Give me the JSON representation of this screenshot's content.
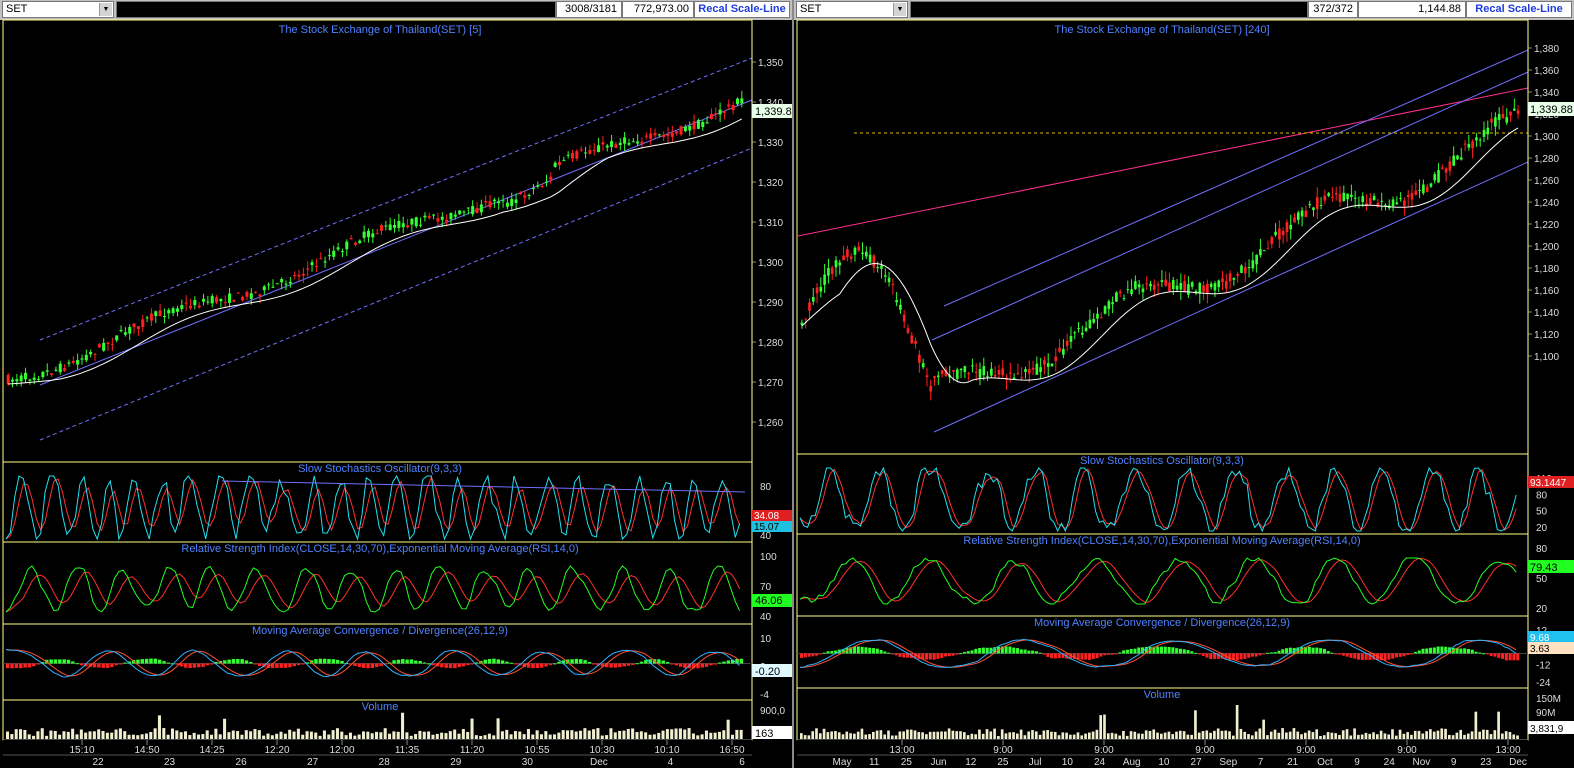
{
  "left": {
    "symbol": "SET",
    "record_count": "3008/3181",
    "volume_value": "772,973.00",
    "recal_label": "Recal Scale-Line",
    "main_title": "The Stock Exchange of Thailand(SET) [5]",
    "price_ticks": [
      "1,350",
      "1,340",
      "1,330",
      "1,320",
      "1,310",
      "1,300",
      "1,290",
      "1,280",
      "1,270",
      "1,260"
    ],
    "last_price": "1,339.8",
    "stoch_title": "Slow Stochastics Oscillator(9,3,3)",
    "stoch_ticks": [
      "80",
      "40"
    ],
    "stoch_values": [
      "34.08",
      "15.07"
    ],
    "rsi_title": "Relative Strength Index(CLOSE,14,30,70),Exponential Moving Average(RSI,14,0)",
    "rsi_ticks": [
      "100",
      "70",
      "40"
    ],
    "rsi_value": "46.06",
    "macd_title": "Moving Average Convergence / Divergence(26,12,9)",
    "macd_ticks": [
      "10",
      "2",
      "-4"
    ],
    "macd_value": "-0.20",
    "volume_title": "Volume",
    "volume_ticks": [
      "900,0"
    ],
    "volume_value_label": "163",
    "time_labels": [
      "15:10",
      "14:50",
      "14:25",
      "12:20",
      "12:00",
      "11:35",
      "11:20",
      "10:55",
      "10:30",
      "10:10",
      "16:50"
    ],
    "date_labels": [
      "22",
      "23",
      "26",
      "27",
      "28",
      "29",
      "30",
      "Dec",
      "4",
      "6"
    ]
  },
  "right": {
    "symbol": "SET",
    "record_count": "372/372",
    "volume_value": "1,144.88",
    "recal_label": "Recal Scale-Line",
    "main_title": "The Stock Exchange of Thailand(SET) [240]",
    "price_ticks": [
      "1,380",
      "1,360",
      "1,340",
      "1,320",
      "1,300",
      "1,280",
      "1,260",
      "1,240",
      "1,220",
      "1,200",
      "1,180",
      "1,160",
      "1,140",
      "1,120",
      "1,100"
    ],
    "last_price": "1,339.88",
    "stoch_title": "Slow Stochastics Oscillator(9,3,3)",
    "stoch_ticks": [
      "110",
      "80",
      "50",
      "20"
    ],
    "stoch_value": "93.1447",
    "rsi_title": "Relative Strength Index(CLOSE,14,30,70),Exponential Moving Average(RSI,14,0)",
    "rsi_ticks": [
      "80",
      "50",
      "20"
    ],
    "rsi_value": "79.43",
    "macd_title": "Moving Average Convergence / Divergence(26,12,9)",
    "macd_ticks": [
      "12",
      "0",
      "-12",
      "-24"
    ],
    "macd_values": [
      "9.68",
      "3.63"
    ],
    "volume_title": "Volume",
    "volume_ticks": [
      "150M",
      "90M"
    ],
    "volume_value_label": "3,831,9",
    "time_labels": [
      "13:00",
      "9:00",
      "9:00",
      "9:00",
      "9:00",
      "9:00",
      "13:00"
    ],
    "date_labels": [
      "May",
      "11",
      "25",
      "Jun",
      "12",
      "25",
      "Jul",
      "10",
      "24",
      "Aug",
      "10",
      "27",
      "Sep",
      "7",
      "21",
      "Oct",
      "9",
      "24",
      "Nov",
      "9",
      "23",
      "Dec"
    ]
  },
  "colors": {
    "background": "#000000",
    "grid": "#2a2a2a",
    "panel_border": "#ffff80",
    "title_text": "#4f82ff",
    "candle_up": "#33ff33",
    "candle_down": "#ff2020",
    "ma_line": "#ffffff",
    "channel_line": "#7070ff",
    "resistance": "#ff3090",
    "support_dashed": "#e0c000",
    "stoch_k": "#20e0f0",
    "stoch_d": "#ff3030",
    "rsi_line": "#20ff20",
    "macd_line": "#30b0ff",
    "signal_line": "#ff5030"
  }
}
